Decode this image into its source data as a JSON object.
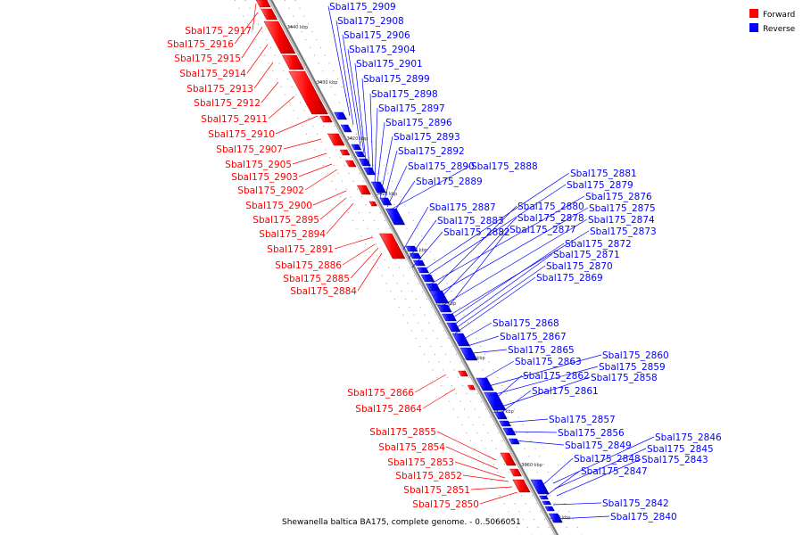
{
  "caption": "Shewanella baltica BA175, complete genome. - 0..5066051",
  "legend": {
    "items": [
      {
        "label": "Forward",
        "color": "#ff0000"
      },
      {
        "label": "Reverse",
        "color": "#0000ff"
      }
    ]
  },
  "colors": {
    "forward": "#ff0000",
    "reverse": "#0000ff",
    "backbone": "#999999"
  },
  "ticks": [
    "3440 kbp",
    "3430 kbp",
    "3420 kbp",
    "3410 kbp",
    "3400 kbp",
    "3390 kbp",
    "3380 kbp",
    "3370 kbp",
    "3360 kbp",
    "3350 kbp"
  ],
  "forward_labels": [
    "Sbal175_2917",
    "Sbal175_2916",
    "Sbal175_2915",
    "Sbal175_2914",
    "Sbal175_2913",
    "Sbal175_2912",
    "Sbal175_2911",
    "Sbal175_2910",
    "Sbal175_2907",
    "Sbal175_2905",
    "Sbal175_2903",
    "Sbal175_2902",
    "Sbal175_2900",
    "Sbal175_2895",
    "Sbal175_2894",
    "Sbal175_2891",
    "Sbal175_2886",
    "Sbal175_2885",
    "Sbal175_2884",
    "Sbal175_2866",
    "Sbal175_2864",
    "Sbal175_2855",
    "Sbal175_2854",
    "Sbal175_2853",
    "Sbal175_2852",
    "Sbal175_2851",
    "Sbal175_2850"
  ],
  "reverse_labels": [
    "Sbal175_2909",
    "Sbal175_2908",
    "Sbal175_2906",
    "Sbal175_2904",
    "Sbal175_2901",
    "Sbal175_2899",
    "Sbal175_2898",
    "Sbal175_2897",
    "Sbal175_2896",
    "Sbal175_2893",
    "Sbal175_2892",
    "Sbal175_2890",
    "Sbal175_2888",
    "Sbal175_2889",
    "Sbal175_2887",
    "Sbal175_2883",
    "Sbal175_2882",
    "Sbal175_2881",
    "Sbal175_2879",
    "Sbal175_2876",
    "Sbal175_2880",
    "Sbal175_2875",
    "Sbal175_2878",
    "Sbal175_2874",
    "Sbal175_2877",
    "Sbal175_2873",
    "Sbal175_2872",
    "Sbal175_2871",
    "Sbal175_2870",
    "Sbal175_2869",
    "Sbal175_2868",
    "Sbal175_2867",
    "Sbal175_2865",
    "Sbal175_2863",
    "Sbal175_2860",
    "Sbal175_2859",
    "Sbal175_2862",
    "Sbal175_2858",
    "Sbal175_2861",
    "Sbal175_2857",
    "Sbal175_2856",
    "Sbal175_2846",
    "Sbal175_2849",
    "Sbal175_2845",
    "Sbal175_2848",
    "Sbal175_2843",
    "Sbal175_2847",
    "Sbal175_2842",
    "Sbal175_2840"
  ]
}
